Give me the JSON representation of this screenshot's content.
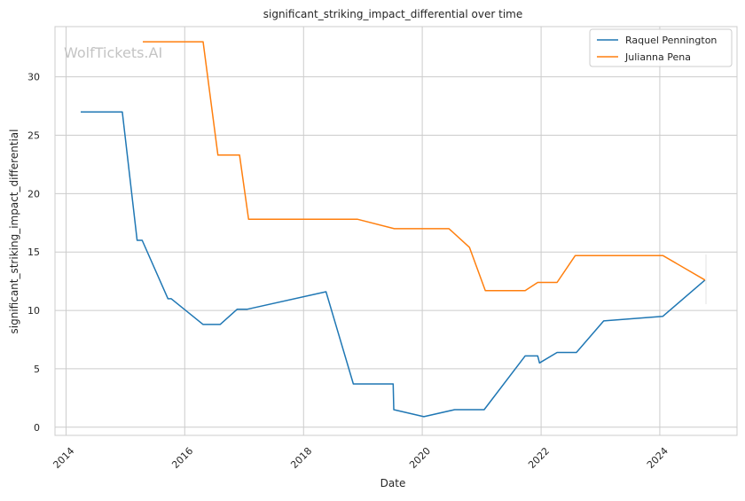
{
  "watermark": "WolfTickets.AI",
  "chart_data": {
    "type": "line",
    "title": "significant_striking_impact_differential over time",
    "xlabel": "Date",
    "ylabel": "significant_striking_impact_differential",
    "x_axis_type": "date",
    "xlim": [
      "2013-10-25",
      "2025-04-20"
    ],
    "ylim": [
      -0.7,
      34.3
    ],
    "x_ticks": [
      "2014",
      "2016",
      "2018",
      "2020",
      "2022",
      "2024"
    ],
    "y_ticks": [
      0,
      5,
      10,
      15,
      20,
      25,
      30
    ],
    "grid": true,
    "legend_position": "top-right",
    "series": [
      {
        "name": "Raquel Pennington",
        "color": "#1f77b4",
        "points": [
          [
            "2014-04-01",
            27.0
          ],
          [
            "2014-12-13",
            27.0
          ],
          [
            "2015-03-14",
            16.0
          ],
          [
            "2015-04-14",
            16.0
          ],
          [
            "2015-09-20",
            11.0
          ],
          [
            "2015-10-10",
            11.0
          ],
          [
            "2016-04-23",
            8.8
          ],
          [
            "2016-08-06",
            8.8
          ],
          [
            "2016-11-19",
            10.1
          ],
          [
            "2017-01-21",
            10.1
          ],
          [
            "2018-05-19",
            11.6
          ],
          [
            "2018-11-03",
            3.7
          ],
          [
            "2019-07-06",
            3.7
          ],
          [
            "2019-07-10",
            1.5
          ],
          [
            "2020-01-11",
            0.9
          ],
          [
            "2020-07-18",
            1.5
          ],
          [
            "2021-01-16",
            1.5
          ],
          [
            "2021-09-25",
            6.1
          ],
          [
            "2021-12-11",
            6.1
          ],
          [
            "2021-12-22",
            5.5
          ],
          [
            "2022-04-09",
            6.4
          ],
          [
            "2022-08-06",
            6.4
          ],
          [
            "2023-01-21",
            9.1
          ],
          [
            "2024-01-20",
            9.5
          ],
          [
            "2024-10-05",
            12.6
          ]
        ]
      },
      {
        "name": "Julianna Pena",
        "color": "#ff7f0e",
        "points": [
          [
            "2015-04-18",
            33.0
          ],
          [
            "2016-04-23",
            33.0
          ],
          [
            "2016-07-23",
            23.3
          ],
          [
            "2016-12-03",
            23.3
          ],
          [
            "2017-01-28",
            17.8
          ],
          [
            "2018-11-30",
            17.8
          ],
          [
            "2019-07-13",
            17.0
          ],
          [
            "2020-06-13",
            17.0
          ],
          [
            "2020-10-17",
            15.4
          ],
          [
            "2021-01-23",
            11.7
          ],
          [
            "2021-09-25",
            11.7
          ],
          [
            "2021-12-11",
            12.4
          ],
          [
            "2022-04-09",
            12.4
          ],
          [
            "2022-07-30",
            14.7
          ],
          [
            "2024-01-20",
            14.7
          ],
          [
            "2024-10-05",
            12.6
          ]
        ]
      }
    ]
  }
}
